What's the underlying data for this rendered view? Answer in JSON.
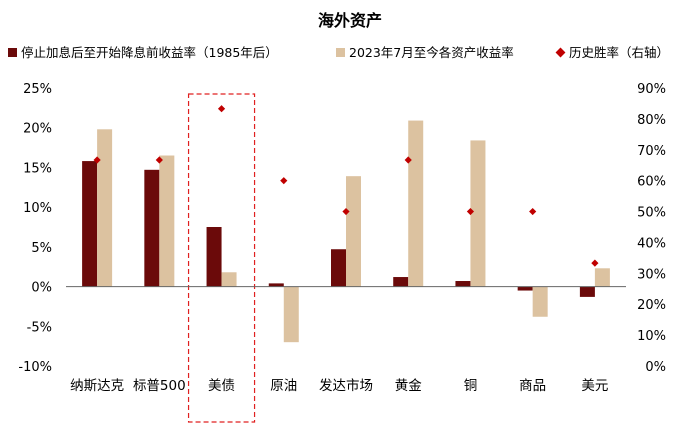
{
  "chart_data": {
    "type": "bar",
    "title": "海外资产",
    "categories": [
      "纳斯达克",
      "标普500",
      "美债",
      "原油",
      "发达市场",
      "黄金",
      "铜",
      "商品",
      "美元"
    ],
    "series": [
      {
        "name": "停止加息后至开始降息前收益率（1985年后）",
        "kind": "bar",
        "axis": "left",
        "color": "#6b0a0a",
        "values": [
          15.8,
          14.7,
          7.5,
          0.4,
          4.7,
          1.2,
          0.7,
          -0.5,
          -1.3
        ]
      },
      {
        "name": "2023年7月至今各资产收益率",
        "kind": "bar",
        "axis": "left",
        "color": "#dcc2a0",
        "values": [
          19.8,
          16.5,
          1.8,
          -7.0,
          13.9,
          20.9,
          18.4,
          -3.8,
          2.3
        ]
      },
      {
        "name": "历史胜率（右轴）",
        "kind": "scatter",
        "axis": "right",
        "color": "#c00000",
        "values": [
          66.7,
          66.7,
          83.3,
          60.0,
          50.0,
          66.7,
          50.0,
          50.0,
          33.3
        ]
      }
    ],
    "y_left": {
      "ylim": [
        -10,
        25
      ],
      "ticks": [
        "-10%",
        "-5%",
        "0%",
        "5%",
        "10%",
        "15%",
        "20%",
        "25%"
      ]
    },
    "y_right": {
      "ylim": [
        0,
        90
      ],
      "ticks": [
        "0%",
        "10%",
        "20%",
        "30%",
        "40%",
        "50%",
        "60%",
        "70%",
        "80%",
        "90%"
      ]
    },
    "highlight_category": "美债",
    "legend_position": "top",
    "grid": false
  }
}
